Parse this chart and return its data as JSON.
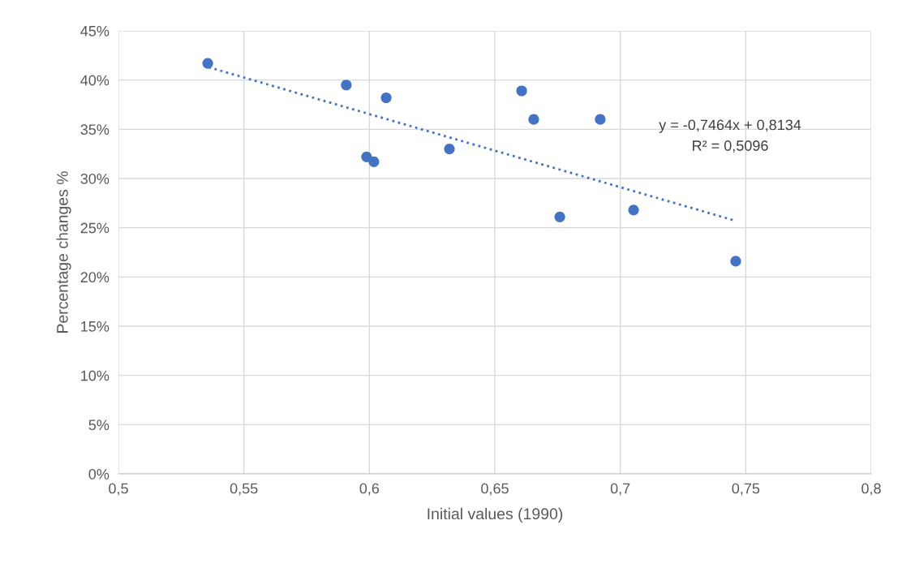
{
  "chart_data": {
    "type": "scatter",
    "xlabel": "Initial values (1990)",
    "ylabel": "Percentage changes %",
    "series": [
      {
        "color": "#4472c4",
        "marker": "circle",
        "x": [
          0.5356,
          0.5908,
          0.5989,
          0.6018,
          0.6067,
          0.6319,
          0.6607,
          0.6655,
          0.6759,
          0.692,
          0.7053,
          0.746
        ],
        "values": [
          41.7,
          39.5,
          32.2,
          31.7,
          38.2,
          33.0,
          38.9,
          36.0,
          26.1,
          36.0,
          26.8,
          21.6
        ]
      },
      {
        "type": "line",
        "color": "#4472c4",
        "line_style": "dotted",
        "marker": "none",
        "x": [
          0.536,
          0.746
        ],
        "values": [
          41.3,
          25.7
        ]
      }
    ],
    "annotations": [
      "y = -0,7464x + 0,8134",
      "R² = 0,5096"
    ],
    "xlim": [
      0.5,
      0.8
    ],
    "ylim": [
      0,
      45
    ],
    "xticks": [
      {
        "value": 0.5,
        "label": "0,5"
      },
      {
        "value": 0.55,
        "label": "0,55"
      },
      {
        "value": 0.6,
        "label": "0,6"
      },
      {
        "value": 0.65,
        "label": "0,65"
      },
      {
        "value": 0.7,
        "label": "0,7"
      },
      {
        "value": 0.75,
        "label": "0,75"
      },
      {
        "value": 0.8,
        "label": "0,8"
      }
    ],
    "yticks": [
      {
        "value": 0,
        "label": "0%"
      },
      {
        "value": 5,
        "label": "5%"
      },
      {
        "value": 10,
        "label": "10%"
      },
      {
        "value": 15,
        "label": "15%"
      },
      {
        "value": 20,
        "label": "20%"
      },
      {
        "value": 25,
        "label": "25%"
      },
      {
        "value": 30,
        "label": "30%"
      },
      {
        "value": 35,
        "label": "35%"
      },
      {
        "value": 40,
        "label": "40%"
      },
      {
        "value": 45,
        "label": "45%"
      }
    ],
    "grid": true
  }
}
